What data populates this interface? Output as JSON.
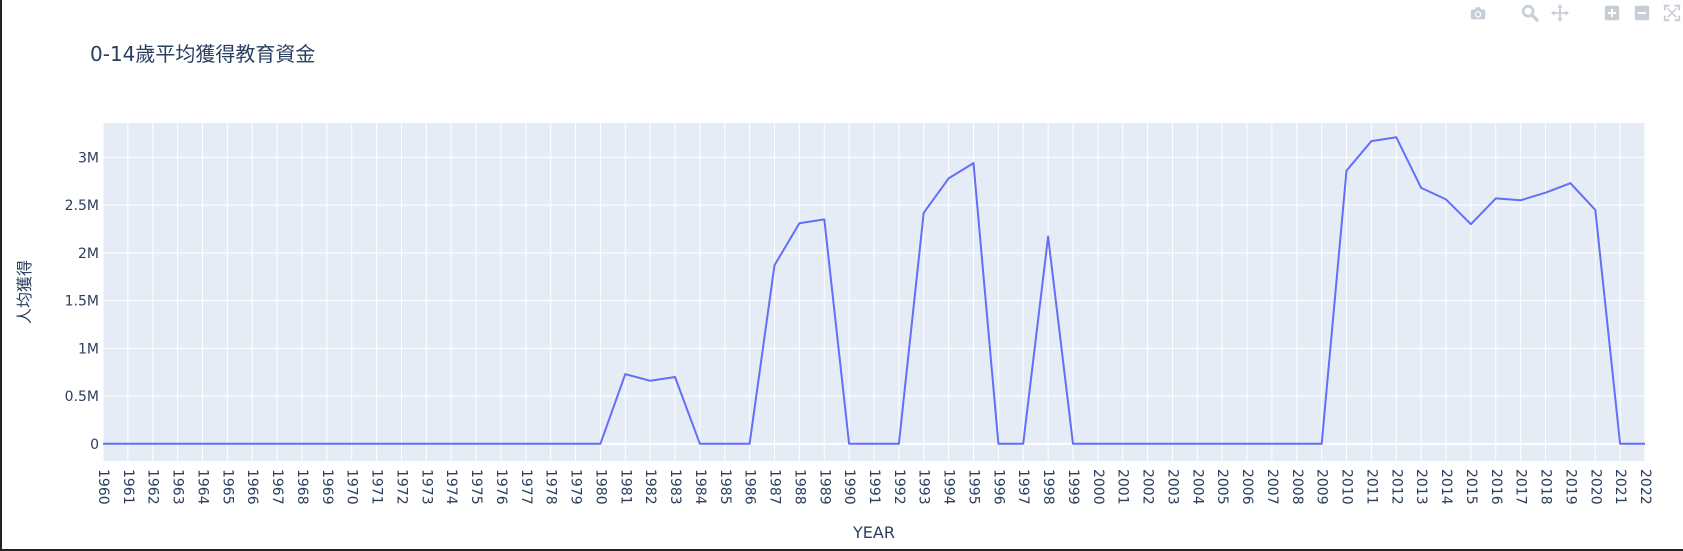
{
  "modebar": {
    "buttons": [
      "camera-icon",
      "zoom-icon",
      "pan-icon",
      "zoom-in-icon",
      "zoom-out-icon",
      "autoscale-icon"
    ]
  },
  "colors": {
    "plot_bg": "#e5ecf6",
    "grid": "#ffffff",
    "line": "#636efa",
    "text": "#2a3f5f",
    "modebar_icon": "#c8ced6"
  },
  "chart_data": {
    "type": "line",
    "title": "0-14歲平均獲得教育資金",
    "xlabel": "YEAR",
    "ylabel": "人均獲得",
    "ylim": [
      -180000,
      3360000
    ],
    "xlim": [
      1960,
      2022
    ],
    "yticks": [
      0,
      500000,
      1000000,
      1500000,
      2000000,
      2500000,
      3000000
    ],
    "ytick_labels": [
      "0",
      "0.5M",
      "1M",
      "1.5M",
      "2M",
      "2.5M",
      "3M"
    ],
    "grid": true,
    "legend": "none",
    "x": [
      1960,
      1961,
      1962,
      1963,
      1964,
      1965,
      1966,
      1967,
      1968,
      1969,
      1970,
      1971,
      1972,
      1973,
      1974,
      1975,
      1976,
      1977,
      1978,
      1979,
      1980,
      1981,
      1982,
      1983,
      1984,
      1985,
      1986,
      1987,
      1988,
      1989,
      1990,
      1991,
      1992,
      1993,
      1994,
      1995,
      1996,
      1997,
      1998,
      1999,
      2000,
      2001,
      2002,
      2003,
      2004,
      2005,
      2006,
      2007,
      2008,
      2009,
      2010,
      2011,
      2012,
      2013,
      2014,
      2015,
      2016,
      2017,
      2018,
      2019,
      2020,
      2021,
      2022
    ],
    "x_labels": [
      "1960",
      "1961",
      "1962",
      "1963",
      "1964",
      "1965",
      "1966",
      "1967",
      "1968",
      "1969",
      "1970",
      "1971",
      "1972",
      "1973",
      "1974",
      "1975",
      "1976",
      "1977",
      "1978",
      "1979",
      "1980",
      "1981",
      "1982",
      "1983",
      "1984",
      "1985",
      "1986",
      "1987",
      "1988",
      "1989",
      "1990",
      "1991",
      "1992",
      "1993",
      "1994",
      "1995",
      "1996",
      "1997",
      "1998",
      "1999",
      "2000",
      "2001",
      "2002",
      "2003",
      "2004",
      "2005",
      "2006",
      "2007",
      "2008",
      "2009",
      "2010",
      "2011",
      "2012",
      "2013",
      "2014",
      "2015",
      "2016",
      "2017",
      "2018",
      "2019",
      "2020",
      "2021",
      "2022"
    ],
    "series": [
      {
        "values": [
          0,
          0,
          0,
          0,
          0,
          0,
          0,
          0,
          0,
          0,
          0,
          0,
          0,
          0,
          0,
          0,
          0,
          0,
          0,
          0,
          0,
          730000,
          660000,
          700000,
          0,
          0,
          0,
          1870000,
          2310000,
          2350000,
          0,
          0,
          0,
          2420000,
          2780000,
          2940000,
          0,
          0,
          2170000,
          0,
          0,
          0,
          0,
          0,
          0,
          0,
          0,
          0,
          0,
          0,
          2860000,
          3170000,
          3210000,
          2680000,
          2560000,
          2300000,
          2570000,
          2550000,
          2630000,
          2730000,
          2450000,
          0,
          0
        ]
      }
    ]
  }
}
